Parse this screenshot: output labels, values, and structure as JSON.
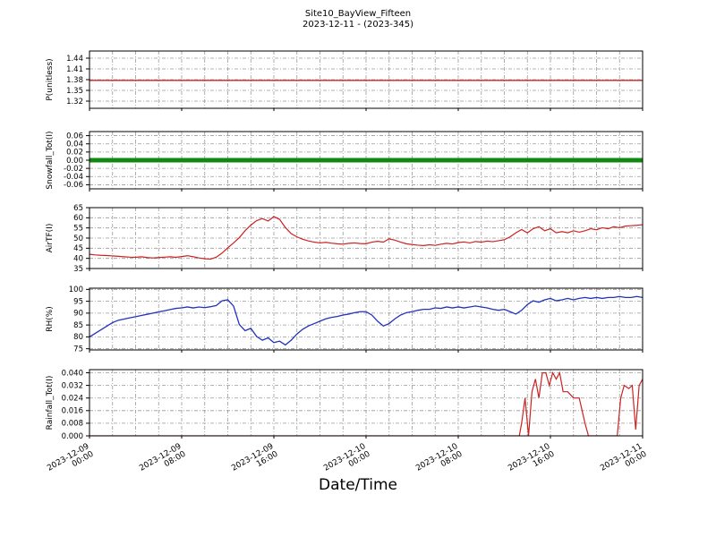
{
  "chart_data": {
    "type": "line",
    "title": "Site10_BayView_Fifteen",
    "subtitle": "2023-12-11 - (2023-345)",
    "xlabel": "Date/Time",
    "grid": true,
    "xlim": [
      0,
      48
    ],
    "minor_x_step_hours": 2,
    "xticks": [
      {
        "t": 0,
        "date": "2023-12-09",
        "time": "00:00"
      },
      {
        "t": 8,
        "date": "2023-12-09",
        "time": "08:00"
      },
      {
        "t": 16,
        "date": "2023-12-09",
        "time": "16:00"
      },
      {
        "t": 24,
        "date": "2023-12-10",
        "time": "00:00"
      },
      {
        "t": 32,
        "date": "2023-12-10",
        "time": "08:00"
      },
      {
        "t": 40,
        "date": "2023-12-10",
        "time": "16:00"
      },
      {
        "t": 48,
        "date": "2023-12-11",
        "time": "00:00"
      }
    ],
    "panels": [
      {
        "name": "P",
        "ylabel": "P(unitless)",
        "ylim": [
          1.3,
          1.46
        ],
        "ytick_values": [
          1.32,
          1.35,
          1.38,
          1.41,
          1.44
        ],
        "ytick_labels": [
          "1.32",
          "1.35",
          "1.38",
          "1.41",
          "1.44"
        ],
        "color": "#cc2222",
        "linewidth": 1.3,
        "points": [
          [
            0,
            1.378
          ],
          [
            48,
            1.378
          ]
        ]
      },
      {
        "name": "Snowfall_Tot",
        "ylabel": "Snowfall_Tot(I)",
        "ylim": [
          -0.07,
          0.07
        ],
        "ytick_values": [
          -0.06,
          -0.04,
          -0.02,
          0.0,
          0.02,
          0.04,
          0.06
        ],
        "ytick_labels": [
          "-0.06",
          "-0.04",
          "-0.02",
          "0.00",
          "0.02",
          "0.04",
          "0.06"
        ],
        "color": "#118811",
        "linewidth": 5,
        "points": [
          [
            0,
            0.0
          ],
          [
            48,
            0.0
          ]
        ]
      },
      {
        "name": "AirTF",
        "ylabel": "AirTF(I)",
        "ylim": [
          35,
          65
        ],
        "ytick_values": [
          35,
          40,
          45,
          50,
          55,
          60,
          65
        ],
        "ytick_labels": [
          "35",
          "40",
          "45",
          "50",
          "55",
          "60",
          "65"
        ],
        "color": "#cc2222",
        "linewidth": 1.2,
        "points": [
          [
            0,
            42.0
          ],
          [
            0.5,
            41.7
          ],
          [
            1,
            41.5
          ],
          [
            1.5,
            41.4
          ],
          [
            2,
            41.2
          ],
          [
            2.5,
            41.0
          ],
          [
            3,
            40.8
          ],
          [
            3.5,
            40.6
          ],
          [
            4,
            40.5
          ],
          [
            4.5,
            40.8
          ],
          [
            5,
            40.4
          ],
          [
            5.5,
            40.2
          ],
          [
            6,
            40.4
          ],
          [
            6.5,
            40.6
          ],
          [
            7,
            40.8
          ],
          [
            7.5,
            40.5
          ],
          [
            8,
            40.9
          ],
          [
            8.5,
            41.3
          ],
          [
            9,
            40.8
          ],
          [
            9.5,
            40.2
          ],
          [
            10,
            39.8
          ],
          [
            10.5,
            39.6
          ],
          [
            11,
            40.6
          ],
          [
            11.5,
            42.6
          ],
          [
            12,
            45.2
          ],
          [
            12.5,
            47.6
          ],
          [
            13,
            50.2
          ],
          [
            13.5,
            53.6
          ],
          [
            14,
            56.4
          ],
          [
            14.5,
            58.6
          ],
          [
            15,
            59.6
          ],
          [
            15.5,
            58.4
          ],
          [
            16,
            60.6
          ],
          [
            16.5,
            59.2
          ],
          [
            17,
            55.2
          ],
          [
            17.5,
            52.2
          ],
          [
            18,
            50.6
          ],
          [
            18.5,
            49.4
          ],
          [
            19,
            48.6
          ],
          [
            19.5,
            48.0
          ],
          [
            20,
            47.6
          ],
          [
            20.5,
            47.9
          ],
          [
            21,
            47.5
          ],
          [
            21.5,
            47.2
          ],
          [
            22,
            47.0
          ],
          [
            22.5,
            47.4
          ],
          [
            23,
            47.6
          ],
          [
            23.5,
            47.3
          ],
          [
            24,
            47.2
          ],
          [
            24.5,
            48.0
          ],
          [
            25,
            48.4
          ],
          [
            25.5,
            48.0
          ],
          [
            26,
            49.6
          ],
          [
            26.5,
            49.0
          ],
          [
            27,
            48.0
          ],
          [
            27.5,
            47.2
          ],
          [
            28,
            46.8
          ],
          [
            28.5,
            46.5
          ],
          [
            29,
            46.3
          ],
          [
            29.5,
            46.7
          ],
          [
            30,
            46.4
          ],
          [
            30.5,
            47.0
          ],
          [
            31,
            47.4
          ],
          [
            31.5,
            47.1
          ],
          [
            32,
            47.8
          ],
          [
            32.5,
            48.1
          ],
          [
            33,
            47.6
          ],
          [
            33.5,
            48.3
          ],
          [
            34,
            48.0
          ],
          [
            34.5,
            48.5
          ],
          [
            35,
            48.2
          ],
          [
            35.5,
            48.7
          ],
          [
            36,
            49.2
          ],
          [
            36.5,
            50.6
          ],
          [
            37,
            52.6
          ],
          [
            37.5,
            54.2
          ],
          [
            38,
            52.6
          ],
          [
            38.5,
            54.6
          ],
          [
            39,
            55.6
          ],
          [
            39.5,
            53.6
          ],
          [
            40,
            54.6
          ],
          [
            40.5,
            52.6
          ],
          [
            41,
            53.2
          ],
          [
            41.5,
            52.6
          ],
          [
            42,
            53.6
          ],
          [
            42.5,
            52.9
          ],
          [
            43,
            53.6
          ],
          [
            43.5,
            54.6
          ],
          [
            44,
            54.1
          ],
          [
            44.5,
            55.1
          ],
          [
            45,
            54.6
          ],
          [
            45.5,
            55.6
          ],
          [
            46,
            55.1
          ],
          [
            46.5,
            55.9
          ],
          [
            47,
            56.1
          ],
          [
            47.5,
            56.3
          ],
          [
            48,
            56.6
          ]
        ]
      },
      {
        "name": "RH",
        "ylabel": "RH(%)",
        "ylim": [
          74.5,
          100.5
        ],
        "ytick_values": [
          75,
          80,
          85,
          90,
          95,
          100
        ],
        "ytick_labels": [
          "75",
          "80",
          "85",
          "90",
          "95",
          "100"
        ],
        "color": "#2233bb",
        "linewidth": 1.3,
        "points": [
          [
            0,
            80.0
          ],
          [
            0.5,
            81.5
          ],
          [
            1,
            83.0
          ],
          [
            1.5,
            84.5
          ],
          [
            2,
            86.0
          ],
          [
            2.5,
            87.0
          ],
          [
            3,
            87.5
          ],
          [
            3.5,
            88.0
          ],
          [
            4,
            88.5
          ],
          [
            4.5,
            89.0
          ],
          [
            5,
            89.5
          ],
          [
            5.5,
            90.0
          ],
          [
            6,
            90.5
          ],
          [
            6.5,
            91.0
          ],
          [
            7,
            91.5
          ],
          [
            7.5,
            92.0
          ],
          [
            8,
            92.2
          ],
          [
            8.5,
            92.6
          ],
          [
            9,
            92.2
          ],
          [
            9.5,
            92.6
          ],
          [
            10,
            92.3
          ],
          [
            10.5,
            92.7
          ],
          [
            11,
            93.2
          ],
          [
            11.5,
            95.2
          ],
          [
            12,
            95.6
          ],
          [
            12.5,
            93.0
          ],
          [
            13,
            85.2
          ],
          [
            13.5,
            82.6
          ],
          [
            14,
            83.6
          ],
          [
            14.5,
            80.2
          ],
          [
            15,
            78.6
          ],
          [
            15.5,
            79.6
          ],
          [
            16,
            77.6
          ],
          [
            16.5,
            78.2
          ],
          [
            17,
            76.6
          ],
          [
            17.5,
            78.6
          ],
          [
            18,
            81.2
          ],
          [
            18.5,
            83.2
          ],
          [
            19,
            84.6
          ],
          [
            19.5,
            85.6
          ],
          [
            20,
            86.6
          ],
          [
            20.5,
            87.6
          ],
          [
            21,
            88.2
          ],
          [
            21.5,
            88.6
          ],
          [
            22,
            89.2
          ],
          [
            22.5,
            89.6
          ],
          [
            23,
            90.2
          ],
          [
            23.5,
            90.6
          ],
          [
            24,
            90.6
          ],
          [
            24.5,
            89.2
          ],
          [
            25,
            86.6
          ],
          [
            25.5,
            84.6
          ],
          [
            26,
            85.6
          ],
          [
            26.5,
            87.6
          ],
          [
            27,
            89.2
          ],
          [
            27.5,
            90.2
          ],
          [
            28,
            90.6
          ],
          [
            28.5,
            91.2
          ],
          [
            29,
            91.6
          ],
          [
            29.5,
            91.6
          ],
          [
            30,
            92.2
          ],
          [
            30.5,
            92.0
          ],
          [
            31,
            92.6
          ],
          [
            31.5,
            92.2
          ],
          [
            32,
            92.6
          ],
          [
            32.5,
            92.2
          ],
          [
            33,
            92.6
          ],
          [
            33.5,
            93.0
          ],
          [
            34,
            92.6
          ],
          [
            34.5,
            92.2
          ],
          [
            35,
            91.6
          ],
          [
            35.5,
            91.2
          ],
          [
            36,
            91.6
          ],
          [
            36.5,
            90.6
          ],
          [
            37,
            89.6
          ],
          [
            37.5,
            91.2
          ],
          [
            38,
            93.6
          ],
          [
            38.5,
            95.2
          ],
          [
            39,
            94.6
          ],
          [
            39.5,
            95.6
          ],
          [
            40,
            96.2
          ],
          [
            40.5,
            95.2
          ],
          [
            41,
            95.6
          ],
          [
            41.5,
            96.2
          ],
          [
            42,
            95.6
          ],
          [
            42.5,
            96.2
          ],
          [
            43,
            96.6
          ],
          [
            43.5,
            96.2
          ],
          [
            44,
            96.6
          ],
          [
            44.5,
            96.2
          ],
          [
            45,
            96.6
          ],
          [
            45.5,
            96.6
          ],
          [
            46,
            97.0
          ],
          [
            46.5,
            96.6
          ],
          [
            47,
            96.6
          ],
          [
            47.5,
            97.0
          ],
          [
            48,
            96.6
          ]
        ]
      },
      {
        "name": "Rainfall_Tot",
        "ylabel": "Rainfall_Tot(I)",
        "ylim": [
          0.0,
          0.042
        ],
        "ytick_values": [
          0.0,
          0.008,
          0.016,
          0.024,
          0.032,
          0.04
        ],
        "ytick_labels": [
          "0.000",
          "0.008",
          "0.016",
          "0.024",
          "0.032",
          "0.040"
        ],
        "color": "#cc2222",
        "linewidth": 1.2,
        "points": [
          [
            0,
            0
          ],
          [
            37.3,
            0
          ],
          [
            37.5,
            0.008
          ],
          [
            37.8,
            0.024
          ],
          [
            38.1,
            0.0
          ],
          [
            38.4,
            0.028
          ],
          [
            38.7,
            0.036
          ],
          [
            39.0,
            0.024
          ],
          [
            39.3,
            0.04
          ],
          [
            39.6,
            0.04
          ],
          [
            39.9,
            0.032
          ],
          [
            40.2,
            0.04
          ],
          [
            40.5,
            0.036
          ],
          [
            40.8,
            0.04
          ],
          [
            41.1,
            0.028
          ],
          [
            41.5,
            0.028
          ],
          [
            42.0,
            0.024
          ],
          [
            42.5,
            0.024
          ],
          [
            43.0,
            0.008
          ],
          [
            43.3,
            0.0
          ],
          [
            45.8,
            0.0
          ],
          [
            46.1,
            0.024
          ],
          [
            46.4,
            0.032
          ],
          [
            46.8,
            0.03
          ],
          [
            47.1,
            0.032
          ],
          [
            47.4,
            0.004
          ],
          [
            47.7,
            0.032
          ],
          [
            48,
            0.036
          ]
        ]
      }
    ],
    "grid_color": "#999999",
    "axis_color": "#000000"
  }
}
